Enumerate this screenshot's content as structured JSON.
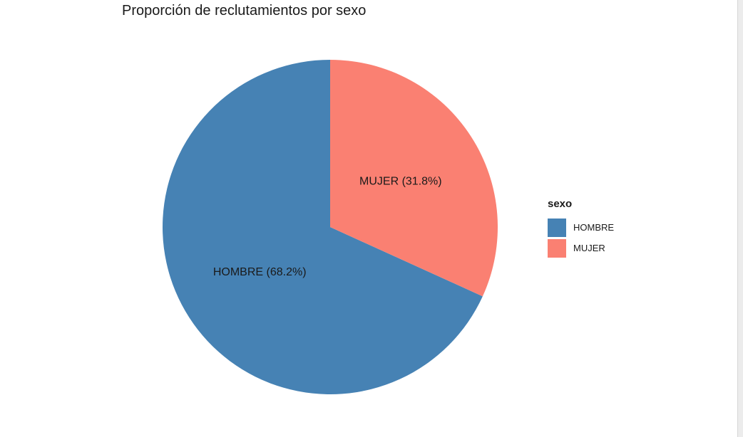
{
  "chart_data": {
    "type": "pie",
    "title": "Proporción de reclutamientos por sexo",
    "categories": [
      "HOMBRE",
      "MUJER"
    ],
    "values": [
      68.2,
      31.8
    ],
    "slice_labels": [
      "HOMBRE (68.2%)",
      "MUJER (31.8%)"
    ],
    "colors": [
      "#4682b4",
      "#fa8072"
    ],
    "legend": {
      "title": "sexo",
      "items": [
        "HOMBRE",
        "MUJER"
      ],
      "placement": "right"
    }
  }
}
